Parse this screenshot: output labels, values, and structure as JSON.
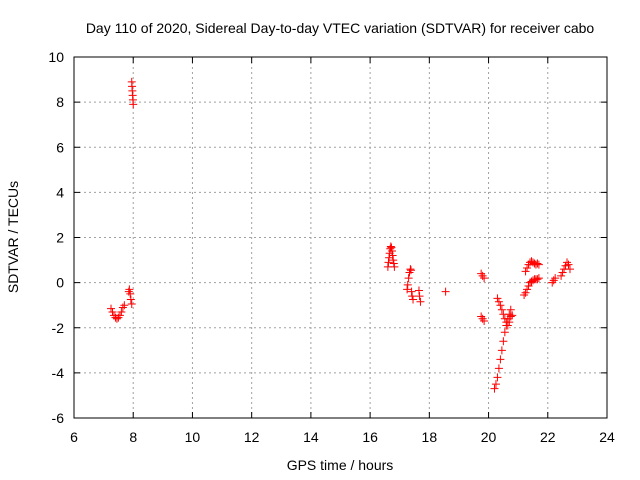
{
  "chart_data": {
    "type": "scatter",
    "title": "Day 110 of 2020, Sidereal Day-to-day VTEC variation (SDTVAR) for receiver cabo",
    "xlabel": "GPS time / hours",
    "ylabel": "SDTVAR / TECUs",
    "xlim": [
      6,
      24
    ],
    "ylim": [
      -6,
      10
    ],
    "xticks": [
      6,
      8,
      10,
      12,
      14,
      16,
      18,
      20,
      22,
      24
    ],
    "yticks": [
      -6,
      -4,
      -2,
      0,
      2,
      4,
      6,
      8,
      10
    ],
    "grid": true,
    "marker": "+",
    "color": "#ff0000",
    "series": [
      {
        "name": "SDTVAR",
        "points": [
          [
            7.25,
            -1.15
          ],
          [
            7.3,
            -1.3
          ],
          [
            7.35,
            -1.45
          ],
          [
            7.4,
            -1.55
          ],
          [
            7.45,
            -1.6
          ],
          [
            7.5,
            -1.55
          ],
          [
            7.55,
            -1.45
          ],
          [
            7.6,
            -1.3
          ],
          [
            7.65,
            -1.1
          ],
          [
            7.7,
            -1.0
          ],
          [
            7.85,
            -0.4
          ],
          [
            7.87,
            -0.3
          ],
          [
            7.9,
            -0.5
          ],
          [
            7.92,
            -0.75
          ],
          [
            7.95,
            -0.95
          ],
          [
            7.95,
            8.9
          ],
          [
            7.96,
            8.7
          ],
          [
            7.97,
            8.5
          ],
          [
            7.98,
            8.3
          ],
          [
            7.99,
            8.1
          ],
          [
            8.0,
            7.9
          ],
          [
            16.6,
            0.7
          ],
          [
            16.62,
            0.9
          ],
          [
            16.64,
            1.1
          ],
          [
            16.66,
            1.3
          ],
          [
            16.68,
            1.5
          ],
          [
            16.7,
            1.6
          ],
          [
            16.72,
            1.55
          ],
          [
            16.74,
            1.4
          ],
          [
            16.76,
            1.2
          ],
          [
            16.78,
            1.0
          ],
          [
            16.8,
            0.85
          ],
          [
            16.82,
            0.7
          ],
          [
            17.25,
            -0.3
          ],
          [
            17.27,
            -0.1
          ],
          [
            17.3,
            0.2
          ],
          [
            17.33,
            0.45
          ],
          [
            17.36,
            0.6
          ],
          [
            17.38,
            0.55
          ],
          [
            17.4,
            -0.4
          ],
          [
            17.42,
            -0.6
          ],
          [
            17.45,
            -0.75
          ],
          [
            17.65,
            -0.35
          ],
          [
            17.67,
            -0.6
          ],
          [
            17.7,
            -0.85
          ],
          [
            18.55,
            -0.4
          ],
          [
            19.75,
            0.4
          ],
          [
            19.8,
            0.3
          ],
          [
            19.85,
            0.2
          ],
          [
            19.75,
            -1.5
          ],
          [
            19.8,
            -1.6
          ],
          [
            19.85,
            -1.7
          ],
          [
            20.2,
            -4.7
          ],
          [
            20.25,
            -4.5
          ],
          [
            20.3,
            -4.2
          ],
          [
            20.35,
            -3.8
          ],
          [
            20.4,
            -3.4
          ],
          [
            20.45,
            -3.0
          ],
          [
            20.5,
            -2.6
          ],
          [
            20.55,
            -2.2
          ],
          [
            20.6,
            -1.9
          ],
          [
            20.65,
            -1.6
          ],
          [
            20.7,
            -1.4
          ],
          [
            20.75,
            -1.2
          ],
          [
            20.3,
            -0.7
          ],
          [
            20.35,
            -0.85
          ],
          [
            20.4,
            -1.0
          ],
          [
            20.45,
            -1.2
          ],
          [
            20.5,
            -1.4
          ],
          [
            20.55,
            -1.6
          ],
          [
            20.6,
            -1.75
          ],
          [
            20.65,
            -1.9
          ],
          [
            20.7,
            -1.75
          ],
          [
            20.75,
            -1.5
          ],
          [
            20.8,
            -1.45
          ],
          [
            21.2,
            -0.55
          ],
          [
            21.25,
            -0.45
          ],
          [
            21.3,
            -0.3
          ],
          [
            21.35,
            -0.15
          ],
          [
            21.4,
            0.0
          ],
          [
            21.45,
            0.05
          ],
          [
            21.5,
            0.1
          ],
          [
            21.55,
            0.15
          ],
          [
            21.6,
            0.15
          ],
          [
            21.65,
            0.15
          ],
          [
            21.7,
            0.2
          ],
          [
            21.25,
            0.5
          ],
          [
            21.3,
            0.65
          ],
          [
            21.35,
            0.8
          ],
          [
            21.4,
            0.9
          ],
          [
            21.45,
            0.95
          ],
          [
            21.5,
            0.9
          ],
          [
            21.55,
            0.85
          ],
          [
            21.6,
            0.8
          ],
          [
            21.65,
            0.85
          ],
          [
            21.7,
            0.8
          ],
          [
            22.15,
            0.0
          ],
          [
            22.2,
            0.1
          ],
          [
            22.25,
            0.2
          ],
          [
            22.45,
            0.3
          ],
          [
            22.5,
            0.45
          ],
          [
            22.55,
            0.6
          ],
          [
            22.6,
            0.75
          ],
          [
            22.65,
            0.9
          ],
          [
            22.7,
            0.8
          ],
          [
            22.75,
            0.6
          ]
        ]
      }
    ]
  }
}
